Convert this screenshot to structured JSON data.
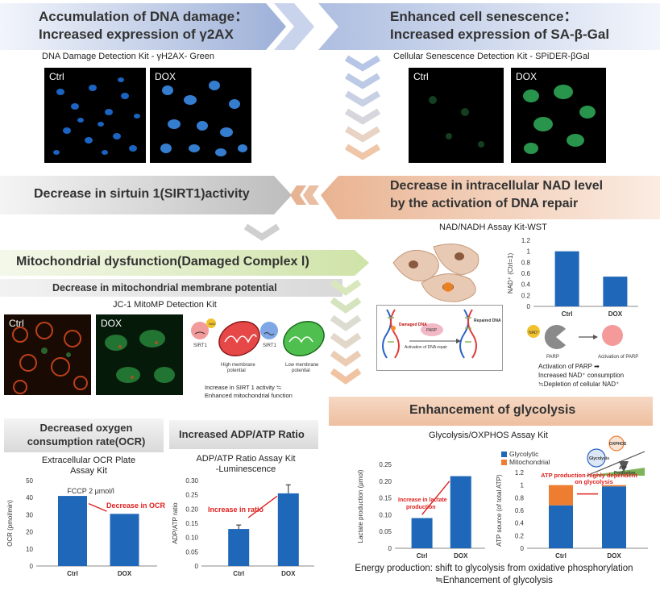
{
  "top_left_banner": {
    "line1": "Accumulation of DNA damage：",
    "line2": "Increased expression of γ2AX"
  },
  "top_right_banner": {
    "line1": "Enhanced cell senescence：",
    "line2": "Increased expression of SA-β-Gal"
  },
  "dna_kit_label": "DNA Damage Detection Kit - γH2AX- Green",
  "senescence_kit_label": "Cellular Senescence Detection Kit - SPiDER-βGal",
  "image_labels": {
    "ctrl": "Ctrl",
    "dox": "DOX"
  },
  "sirt1_banner": "Decrease in sirtuin 1(SIRT1)activity",
  "nad_banner": {
    "line1": "Decrease in intracellular NAD level",
    "line2": "by the activation of DNA repair"
  },
  "nad_kit_label": "NAD/NADH Assay Kit-WST",
  "mito_banner": "Mitochondrial dysfunction(Damaged Complex Ⅰ)",
  "membrane_banner": "Decrease in mitochondrial membrane potential",
  "jc1_kit_label": "JC-1 MitoMP Detection Kit",
  "sirt_diagram": {
    "sirt1_a": "SIRT1",
    "sirt1_b": "SIRT1",
    "nad_badge": "NAD",
    "high_line1": "High membrane",
    "high_line2": "potential",
    "low_line1": "Low membrane",
    "low_line2": "potential",
    "note_line1": "Increase in SIRT 1 activity ≒",
    "note_line2": "Enhanced mitochondrial function"
  },
  "dna_repair_diagram": {
    "damaged_dna": "Damaged DNA",
    "parp": "PARP",
    "activation": "Activation of DNA repair",
    "repaired_dna": "Repaired DNA"
  },
  "parp_diagram": {
    "nad": "NAD⁺",
    "parp": "PARP",
    "activation": "Activation of PARP",
    "note_line1": "Activation of PARP ➡",
    "note_line2": "Increased NAD⁺ consumption",
    "note_line3": "≒Depletion of cellular NAD⁺"
  },
  "glycolysis_banner": "Enhancement of glycolysis",
  "glyco_kit_label": "Glycolysis/OXPHOS Assay Kit",
  "ocr_header": {
    "line1": "Decreased oxygen",
    "line2": "consumption rate(OCR)"
  },
  "ocr_kit": {
    "line1": "Extracellular OCR Plate",
    "line2": "Assay Kit"
  },
  "adp_header": "Increased ADP/ATP Ratio",
  "adp_kit": {
    "line1": "ADP/ATP Ratio Assay Kit",
    "line2": "-Luminescence"
  },
  "glyco_diagram": {
    "oxphos": "OXPHOS",
    "glycolysis": "Glycolysis",
    "atp_line1": "ATP",
    "atp_line2": "Production"
  },
  "energy_note": {
    "line1": "Energy production: shift to glycolysis from oxidative phosphorylation",
    "line2": "≒Enhancement of glycolysis"
  },
  "colors": {
    "blue_bar": "#1f67b8",
    "orange_bar": "#ed7d31",
    "red_note": "#e02020",
    "microscope_blue": "#2a7fe0",
    "microscope_green": "#2fae5a"
  },
  "chart_data": [
    {
      "id": "nad",
      "type": "bar",
      "categories": [
        "Ctrl",
        "DOX"
      ],
      "values": [
        1.0,
        0.54
      ],
      "ylabel": "NAD⁺ (Ctrl=1)",
      "ylim": [
        0,
        1.2
      ],
      "yticks": [
        "0",
        "0.2",
        "0.4",
        "0.6",
        "0.8",
        "1",
        "1.2"
      ]
    },
    {
      "id": "ocr",
      "type": "bar",
      "categories": [
        "Ctrl",
        "DOX"
      ],
      "values": [
        41,
        30.5
      ],
      "ylabel": "OCR (pmol/min)",
      "ylim": [
        0,
        50
      ],
      "yticks": [
        "0",
        "10",
        "20",
        "30",
        "40",
        "50"
      ],
      "annotations": [
        "FCCP 2 μmol/l",
        "Decrease in OCR"
      ]
    },
    {
      "id": "adp",
      "type": "bar",
      "categories": [
        "Ctrl",
        "DOX"
      ],
      "values": [
        0.13,
        0.255
      ],
      "errors": [
        0.014,
        0.03
      ],
      "ylabel": "ADP/ATP ratio",
      "ylim": [
        0,
        0.3
      ],
      "yticks": [
        "0",
        "0.05",
        "0.10",
        "0.15",
        "0.20",
        "0.25",
        "0.30"
      ],
      "annotations": [
        "Increase in ratio"
      ]
    },
    {
      "id": "lactate",
      "type": "bar",
      "categories": [
        "Ctrl",
        "DOX"
      ],
      "values": [
        0.09,
        0.215
      ],
      "ylabel": "Lactate production (μmol)",
      "ylim": [
        0,
        0.25
      ],
      "yticks": [
        "0",
        "0.05",
        "0.10",
        "0.15",
        "0.20",
        "0.25"
      ],
      "annotations": [
        "Increase in lactate",
        "production"
      ]
    },
    {
      "id": "atp_source",
      "type": "bar",
      "categories": [
        "Ctrl",
        "DOX"
      ],
      "series": [
        {
          "name": "Glycolytic",
          "values": [
            0.68,
            0.98
          ]
        },
        {
          "name": "Mitochondrial",
          "values": [
            0.32,
            0.02
          ]
        }
      ],
      "ylabel": "ATP source (of total ATP)",
      "ylim": [
        0,
        1.2
      ],
      "yticks": [
        "0",
        "0.2",
        "0.4",
        "0.6",
        "0.8",
        "1",
        "1.2"
      ],
      "annotations": [
        "ATP production highly dependent",
        "on glycolysis"
      ]
    }
  ]
}
